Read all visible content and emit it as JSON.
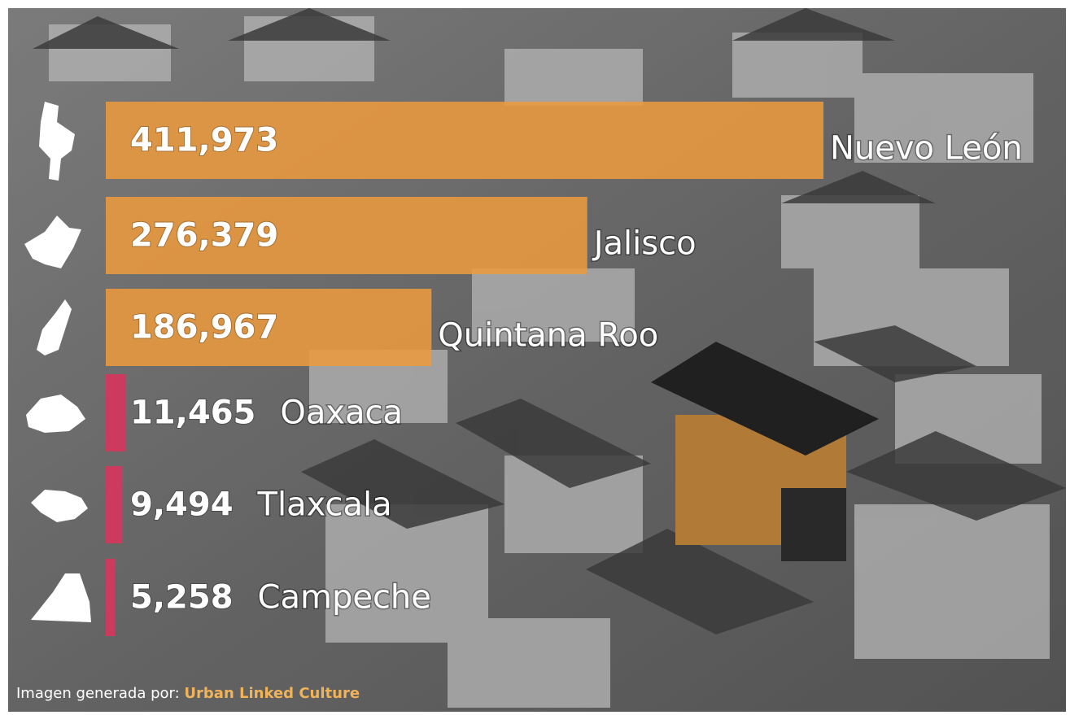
{
  "chart_data": {
    "type": "hbar",
    "categories": [
      "Nuevo León",
      "Jalisco",
      "Quintana Roo",
      "Oaxaca",
      "Tlaxcala",
      "Campeche"
    ],
    "values": [
      411973,
      276379,
      186967,
      11465,
      9494,
      5258
    ],
    "value_labels": [
      "411,973",
      "276,379",
      "186,967",
      "11,465",
      "9,494",
      "5,258"
    ],
    "colors": [
      "#eb9a3e",
      "#eb9a3e",
      "#eb9a3e",
      "#d2385e",
      "#d2385e",
      "#d2385e"
    ]
  },
  "footer": {
    "prefix": "Imagen generada por:",
    "credit": "Urban Linked Culture"
  }
}
